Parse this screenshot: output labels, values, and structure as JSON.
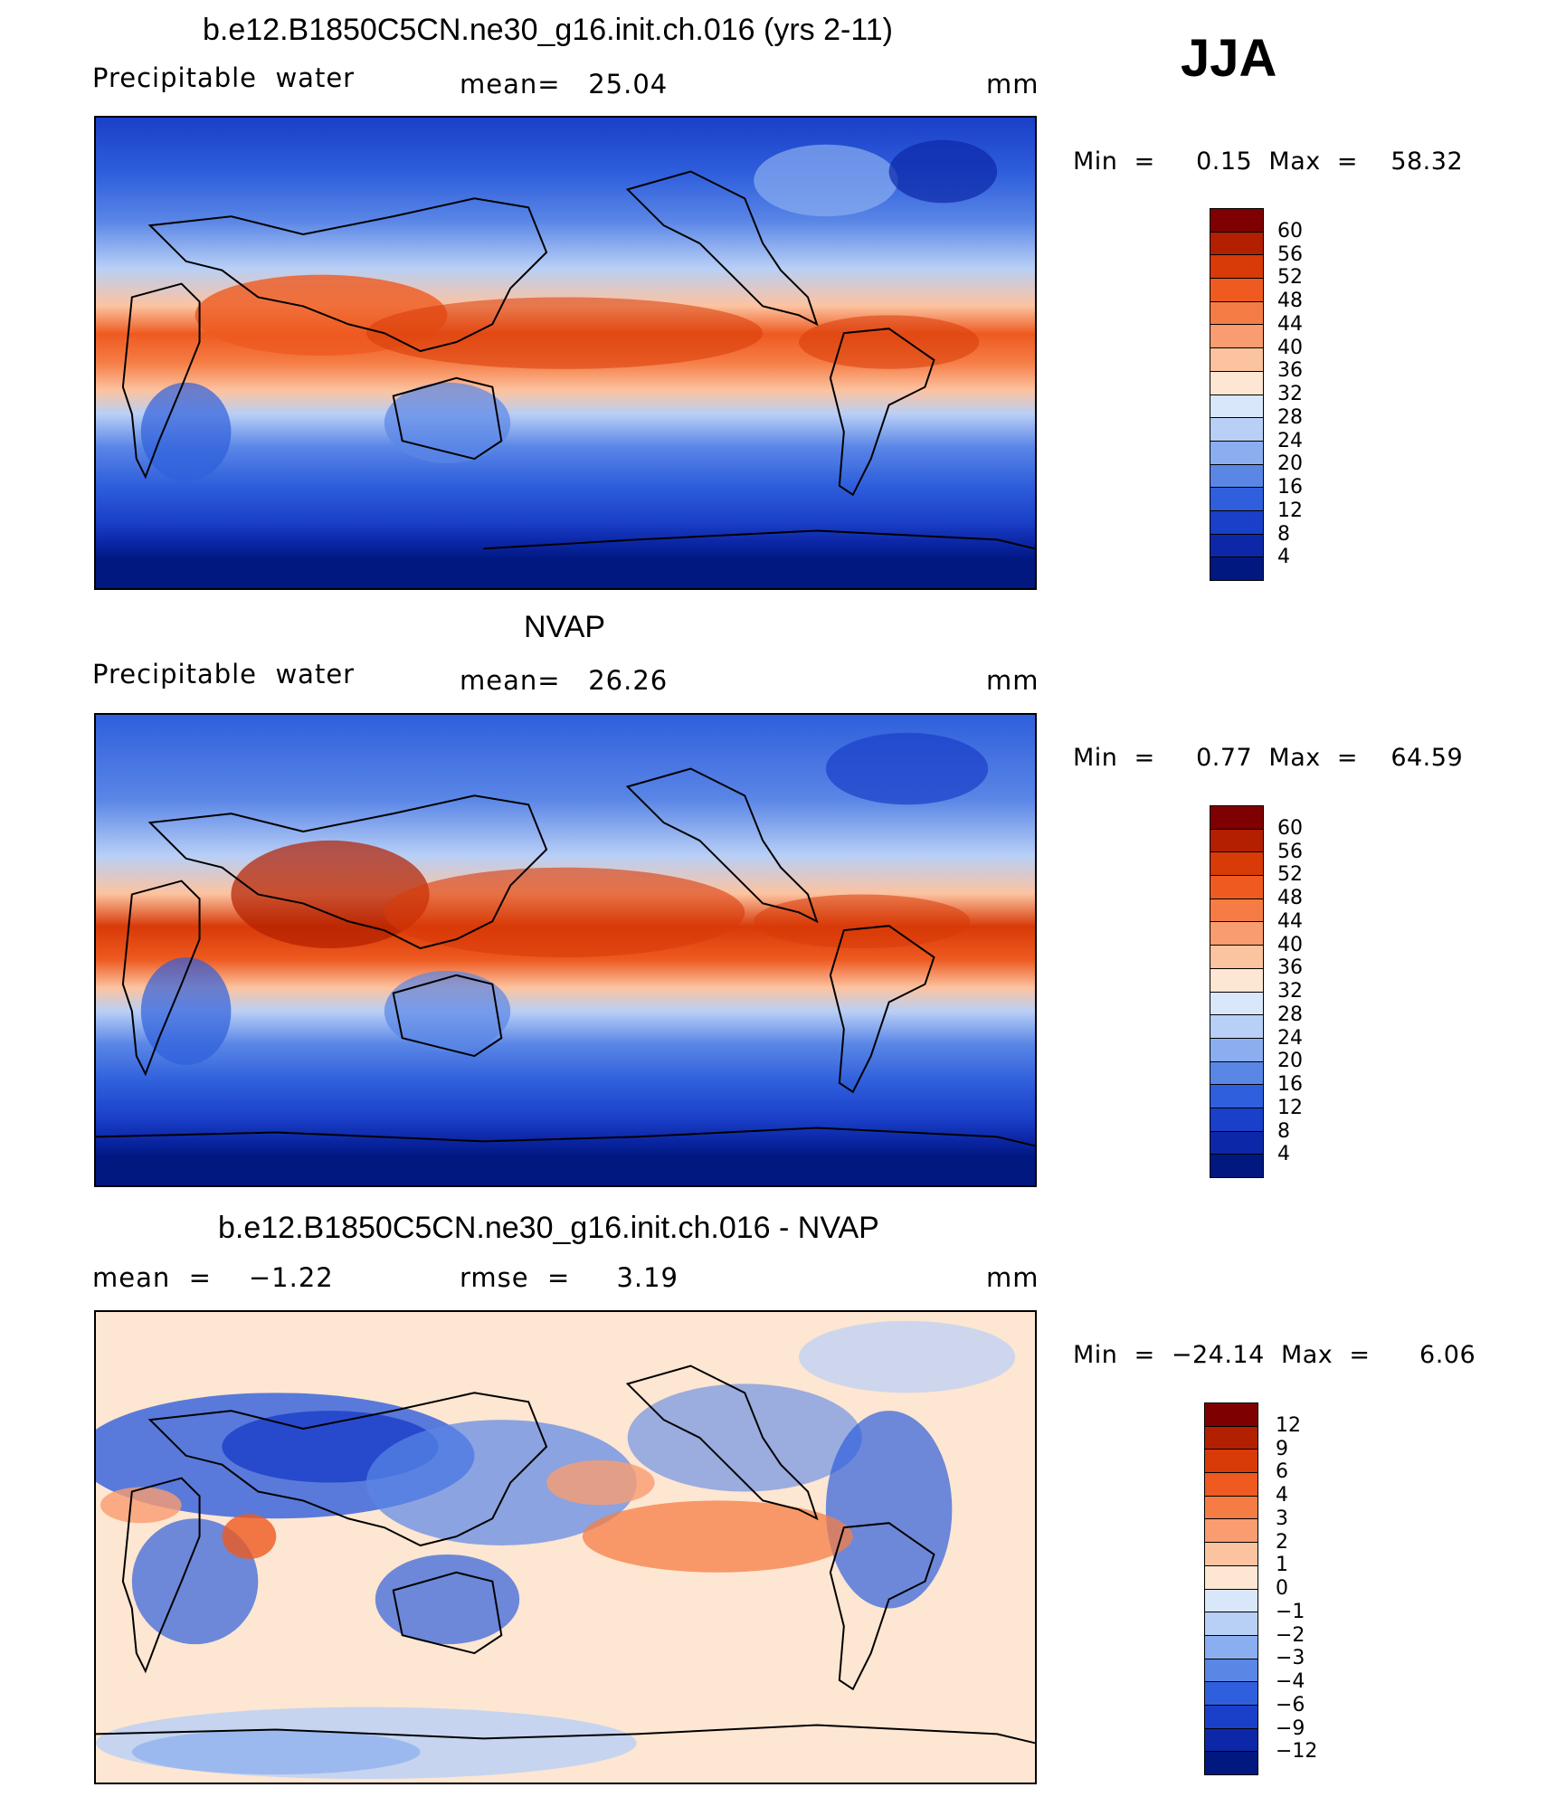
{
  "season": "JJA",
  "panels": [
    {
      "title": "b.e12.B1850C5CN.ne30_g16.init.ch.016 (yrs 2-11)",
      "left_label": "Precipitable  water",
      "center_label": "mean=   25.04",
      "units": "mm",
      "minmax": "Min  =     0.15  Max  =    58.32",
      "colorbar": {
        "levels": [
          "60",
          "56",
          "52",
          "48",
          "44",
          "40",
          "36",
          "32",
          "28",
          "24",
          "20",
          "16",
          "12",
          "8",
          "4"
        ],
        "colors": [
          "#7f0000",
          "#b22000",
          "#d83a08",
          "#ee5a20",
          "#f57d45",
          "#f99c70",
          "#fcc3a0",
          "#fde6d2",
          "#d9e7fa",
          "#b8cff6",
          "#8aaef0",
          "#5a86e6",
          "#2f5fdc",
          "#1a3fc8",
          "#0c28a8",
          "#001880"
        ]
      }
    },
    {
      "title": "NVAP",
      "left_label": "Precipitable  water",
      "center_label": "mean=   26.26",
      "units": "mm",
      "minmax": "Min  =     0.77  Max  =    64.59",
      "colorbar": {
        "levels": [
          "60",
          "56",
          "52",
          "48",
          "44",
          "40",
          "36",
          "32",
          "28",
          "24",
          "20",
          "16",
          "12",
          "8",
          "4"
        ],
        "colors": [
          "#7f0000",
          "#b22000",
          "#d83a08",
          "#ee5a20",
          "#f57d45",
          "#f99c70",
          "#fcc3a0",
          "#fde6d2",
          "#d9e7fa",
          "#b8cff6",
          "#8aaef0",
          "#5a86e6",
          "#2f5fdc",
          "#1a3fc8",
          "#0c28a8",
          "#001880"
        ]
      }
    },
    {
      "title": "b.e12.B1850C5CN.ne30_g16.init.ch.016 - NVAP",
      "left_label": "mean  =    −1.22",
      "center_label": "rmse  =     3.19",
      "units": "mm",
      "minmax": "Min  =  −24.14  Max  =      6.06",
      "colorbar": {
        "levels": [
          "12",
          "9",
          "6",
          "4",
          "3",
          "2",
          "1",
          "0",
          "−1",
          "−2",
          "−3",
          "−4",
          "−6",
          "−9",
          "−12"
        ],
        "colors": [
          "#7f0000",
          "#b22000",
          "#d83a08",
          "#ee5a20",
          "#f57d45",
          "#f99c70",
          "#fcc3a0",
          "#fde6d2",
          "#d9e7fa",
          "#b8cff6",
          "#8aaef0",
          "#5a86e6",
          "#2f5fdc",
          "#1a3fc8",
          "#0c28a8",
          "#001880"
        ]
      }
    }
  ]
}
